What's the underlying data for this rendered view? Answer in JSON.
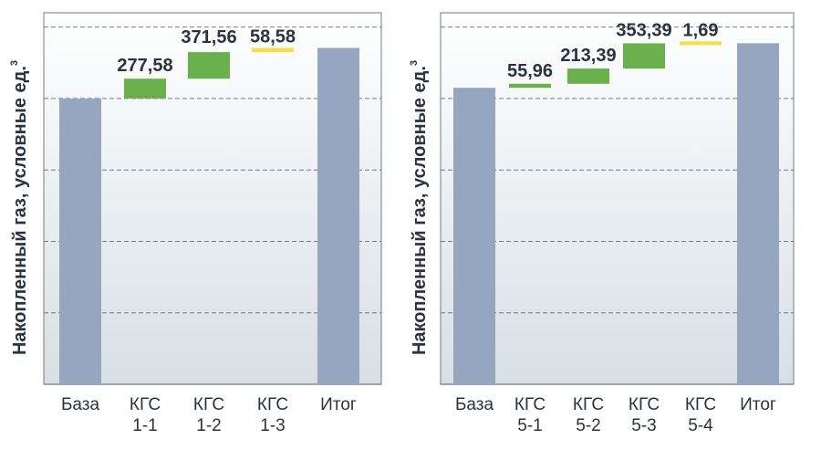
{
  "chart_data": [
    {
      "type": "waterfall",
      "title": "",
      "ylabel": "Накопленный газ, условные ед.",
      "ylabel_sup": "3",
      "xlabel": "",
      "grid": true,
      "categories": [
        [
          "База"
        ],
        [
          "КГС",
          "1-1"
        ],
        [
          "КГС",
          "1-2"
        ],
        [
          "КГС",
          "1-3"
        ],
        [
          "Итог"
        ]
      ],
      "bars": [
        {
          "kind": "total",
          "base": 0,
          "value": 4000,
          "color": "#97a6c0",
          "label": ""
        },
        {
          "kind": "delta",
          "base": 4000,
          "value": 277.58,
          "color": "#6ab04c",
          "label": "277,58"
        },
        {
          "kind": "delta",
          "base": 4277.58,
          "value": 371.56,
          "color": "#6ab04c",
          "label": "371,56"
        },
        {
          "kind": "delta",
          "base": 4649.14,
          "value": 58.58,
          "color": "#f5de4a",
          "label": "58,58"
        },
        {
          "kind": "total",
          "base": 0,
          "value": 4707.72,
          "color": "#97a6c0",
          "label": ""
        }
      ],
      "ylim": [
        0,
        5200
      ],
      "grid_values": [
        1000,
        2000,
        3000,
        4000,
        5000
      ]
    },
    {
      "type": "waterfall",
      "title": "",
      "ylabel": "Накопленный газ, условные ед.",
      "ylabel_sup": "3",
      "xlabel": "",
      "grid": true,
      "categories": [
        [
          "База"
        ],
        [
          "КГС",
          "5-1"
        ],
        [
          "КГС",
          "5-2"
        ],
        [
          "КГС",
          "5-3"
        ],
        [
          "КГС",
          "5-4"
        ],
        [
          "Итог"
        ]
      ],
      "bars": [
        {
          "kind": "total",
          "base": 0,
          "value": 4150,
          "color": "#97a6c0",
          "label": ""
        },
        {
          "kind": "delta",
          "base": 4150,
          "value": 55.96,
          "color": "#6ab04c",
          "label": "55,96"
        },
        {
          "kind": "delta",
          "base": 4205.96,
          "value": 213.39,
          "color": "#6ab04c",
          "label": "213,39"
        },
        {
          "kind": "delta",
          "base": 4419.35,
          "value": 353.39,
          "color": "#6ab04c",
          "label": "353,39"
        },
        {
          "kind": "delta",
          "base": 4772.74,
          "value": 1.69,
          "color": "#f5de4a",
          "label": "1,69"
        },
        {
          "kind": "total",
          "base": 0,
          "value": 4774.43,
          "color": "#97a6c0",
          "label": ""
        }
      ],
      "ylim": [
        0,
        5200
      ],
      "grid_values": [
        1000,
        2000,
        3000,
        4000,
        5000
      ]
    }
  ],
  "colors": {
    "panel_top": "#ffffff",
    "panel_bottom": "#d9e1e6",
    "grid": "#6f7b87",
    "axis": "#6f7b87",
    "text": "#2b3340"
  }
}
